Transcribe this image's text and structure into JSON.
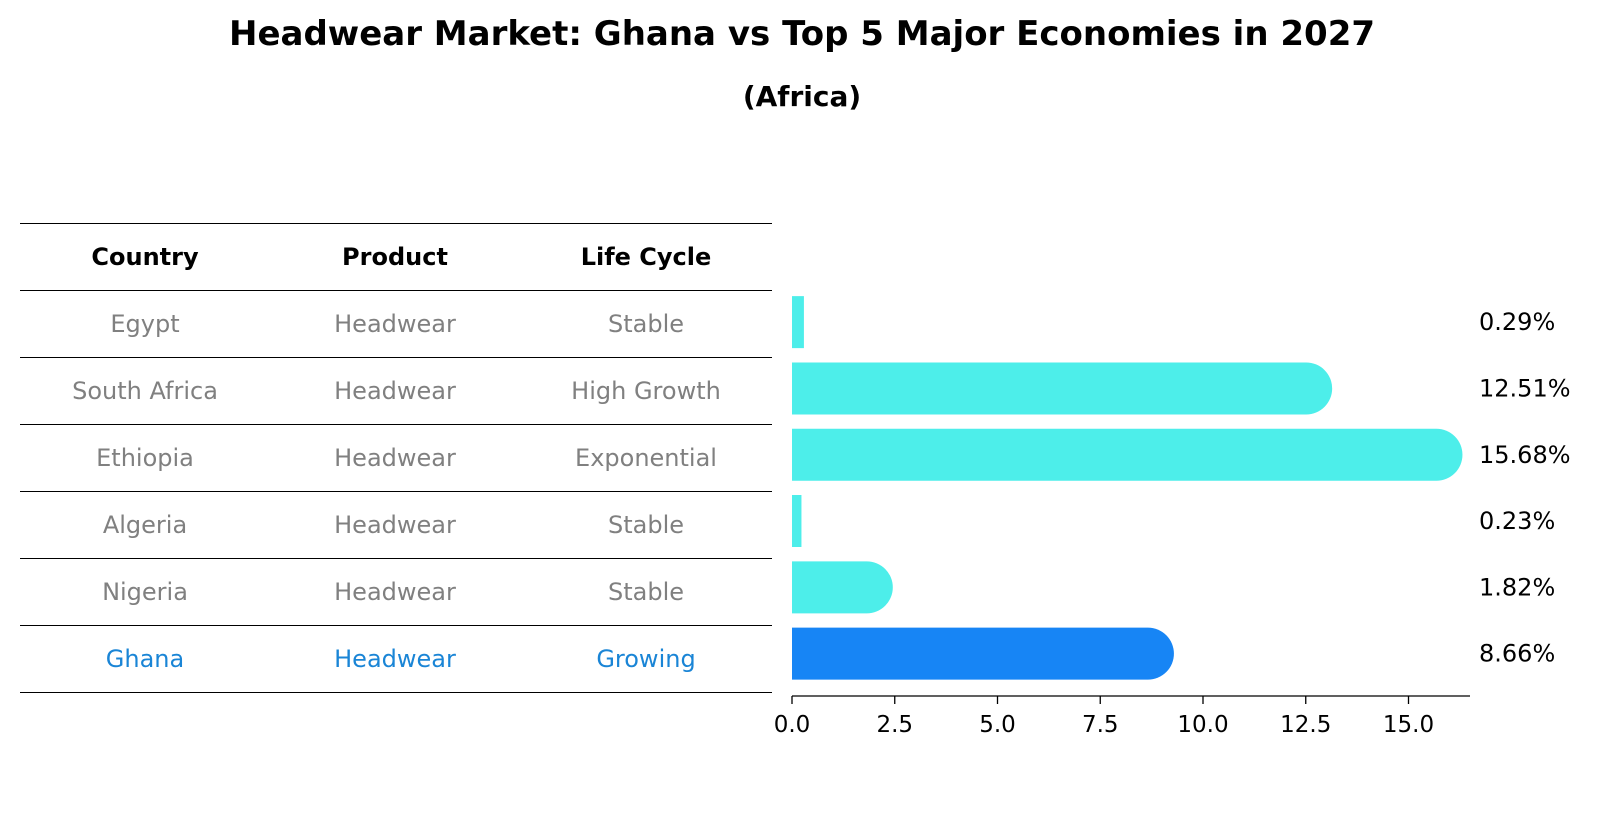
{
  "title": "Headwear Market: Ghana vs Top 5 Major Economies in 2027",
  "subtitle": "(Africa)",
  "table": {
    "headers": [
      "Country",
      "Product",
      "Life Cycle"
    ],
    "rows": [
      {
        "country": "Egypt",
        "product": "Headwear",
        "life_cycle": "Stable"
      },
      {
        "country": "South Africa",
        "product": "Headwear",
        "life_cycle": "High Growth"
      },
      {
        "country": "Ethiopia",
        "product": "Headwear",
        "life_cycle": "Exponential"
      },
      {
        "country": "Algeria",
        "product": "Headwear",
        "life_cycle": "Stable"
      },
      {
        "country": "Nigeria",
        "product": "Headwear",
        "life_cycle": "Stable"
      },
      {
        "country": "Ghana",
        "product": "Headwear",
        "life_cycle": "Growing"
      }
    ]
  },
  "chart_data": {
    "type": "bar",
    "orientation": "horizontal",
    "title": "Headwear Market: Ghana vs Top 5 Major Economies in 2027",
    "subtitle": "(Africa)",
    "categories": [
      "Egypt",
      "South Africa",
      "Ethiopia",
      "Algeria",
      "Nigeria",
      "Ghana"
    ],
    "values": [
      0.29,
      12.51,
      15.68,
      0.23,
      1.82,
      8.66
    ],
    "value_labels": [
      "0.29%",
      "12.51%",
      "15.68%",
      "0.23%",
      "1.82%",
      "8.66%"
    ],
    "highlight": "Ghana",
    "xlim": [
      0,
      16.5
    ],
    "xticks": [
      0.0,
      2.5,
      5.0,
      7.5,
      10.0,
      12.5,
      15.0
    ],
    "xtick_labels": [
      "0.0",
      "2.5",
      "5.0",
      "7.5",
      "10.0",
      "12.5",
      "15.0"
    ],
    "xlabel": "",
    "ylabel": "",
    "grid": false,
    "colors": {
      "default": "#4deeea",
      "highlight": "#1785f5"
    }
  },
  "colors": {
    "text_muted": "#808080",
    "highlight_text": "#1a85d6"
  }
}
